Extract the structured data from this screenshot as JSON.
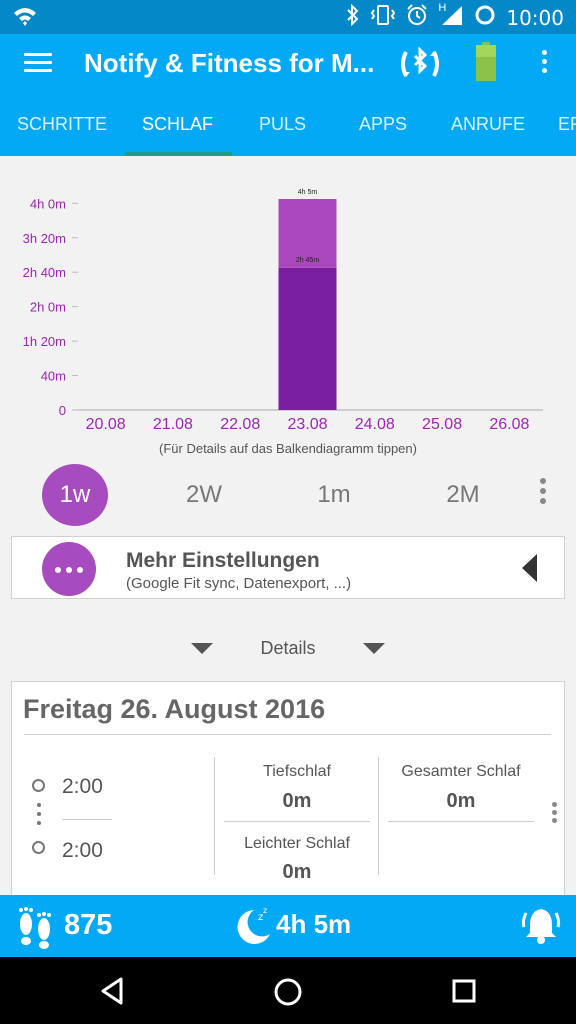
{
  "status_bar": {
    "time": "10:00",
    "network_label": "H",
    "icons": [
      "wifi-icon",
      "bluetooth-icon",
      "vibrate-icon",
      "alarm-icon",
      "signal-icon",
      "battery-ring-icon"
    ]
  },
  "app_bar": {
    "title": "Notify & Fitness for M...",
    "icons": [
      "menu-icon",
      "bluetooth-sync-icon",
      "device-battery-icon",
      "overflow-menu-icon"
    ]
  },
  "tabs": [
    {
      "label": "SCHRITTE",
      "active": false
    },
    {
      "label": "SCHLAF",
      "active": true
    },
    {
      "label": "PULS",
      "active": false
    },
    {
      "label": "APPS",
      "active": false
    },
    {
      "label": "ANRUFE",
      "active": false
    },
    {
      "label": "ER",
      "active": false
    }
  ],
  "chart_data": {
    "type": "bar",
    "categories": [
      "20.08",
      "21.08",
      "22.08",
      "23.08",
      "24.08",
      "25.08",
      "26.08"
    ],
    "series": [
      {
        "values": [
          0,
          0,
          0,
          165,
          0,
          0,
          0
        ]
      },
      {
        "values": [
          0,
          0,
          0,
          80,
          0,
          0,
          0
        ]
      }
    ],
    "totals": [
      0,
      0,
      0,
      245,
      0,
      0,
      0
    ],
    "y_ticks": [
      0,
      40,
      80,
      120,
      160,
      200,
      240
    ],
    "y_tick_labels": [
      "0",
      "40m",
      "1h 20m",
      "2h 0m",
      "2h 40m",
      "3h 20m",
      "4h 0m"
    ],
    "ylim": [
      0,
      250
    ],
    "data_labels": {
      "total": "4h 5m",
      "lower": "2h 45m"
    },
    "colors": {
      "lower": "#7b1fa2",
      "upper": "#ab47bc",
      "axis_text": "#9c27b0"
    },
    "grid": false
  },
  "chart_hint": "(Für Details auf das Balkendiagramm tippen)",
  "range_buttons": [
    {
      "label": "1w",
      "active": true
    },
    {
      "label": "2W",
      "active": false
    },
    {
      "label": "1m",
      "active": false
    },
    {
      "label": "2M",
      "active": false
    }
  ],
  "settings_card": {
    "title": "Mehr Einstellungen",
    "subtitle": "(Google Fit sync, Datenexport, ...)"
  },
  "details": {
    "label": "Details"
  },
  "day_card": {
    "date": "Freitag 26. August 2016",
    "start_time": "2:00",
    "end_time": "2:00",
    "deep_sleep": {
      "label": "Tiefschlaf",
      "value": "0m"
    },
    "total_sleep": {
      "label": "Gesamter Schlaf",
      "value": "0m"
    },
    "light_sleep": {
      "label": "Leichter Schlaf",
      "value": "0m"
    }
  },
  "bottom_bar": {
    "steps": "875",
    "sleep": "4h 5m"
  },
  "colors": {
    "primary": "#03a9f4",
    "status_bar": "#0488c8",
    "accent_purple": "#a64cbe",
    "tab_indicator": "#1e9c8a"
  }
}
